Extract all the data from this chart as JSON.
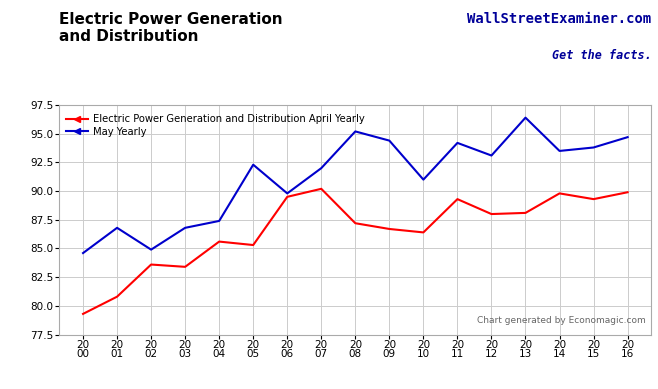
{
  "title": "Electric Power Generation\nand Distribution",
  "watermark_line1": "WallStreetExaminer.com",
  "watermark_line2": "Get the facts.",
  "footnote": "Chart generated by Economagic.com",
  "ylim": [
    77.5,
    97.5
  ],
  "x_values": [
    2000,
    2001,
    2002,
    2003,
    2004,
    2005,
    2006,
    2007,
    2008,
    2009,
    2010,
    2011,
    2012,
    2013,
    2014,
    2015,
    2016
  ],
  "red_series": [
    79.3,
    80.8,
    83.6,
    83.4,
    85.6,
    85.3,
    89.5,
    90.2,
    87.2,
    86.7,
    86.4,
    89.3,
    88.0,
    88.1,
    89.8,
    89.3,
    89.9
  ],
  "blue_series": [
    84.6,
    86.8,
    84.9,
    86.8,
    87.4,
    92.3,
    89.8,
    92.0,
    95.2,
    94.4,
    91.0,
    94.2,
    93.1,
    96.4,
    93.5,
    93.8,
    94.7
  ],
  "red_color": "#ff0000",
  "blue_color": "#0000cc",
  "background_color": "#ffffff",
  "grid_color": "#cccccc",
  "legend_red": "Electric Power Generation and Distribution April Yearly",
  "legend_blue": "May Yearly",
  "title_color": "#000000",
  "watermark_color": "#000099",
  "footnote_color": "#666666",
  "yticks": [
    77.5,
    80.0,
    82.5,
    85.0,
    87.5,
    90.0,
    92.5,
    95.0,
    97.5
  ]
}
